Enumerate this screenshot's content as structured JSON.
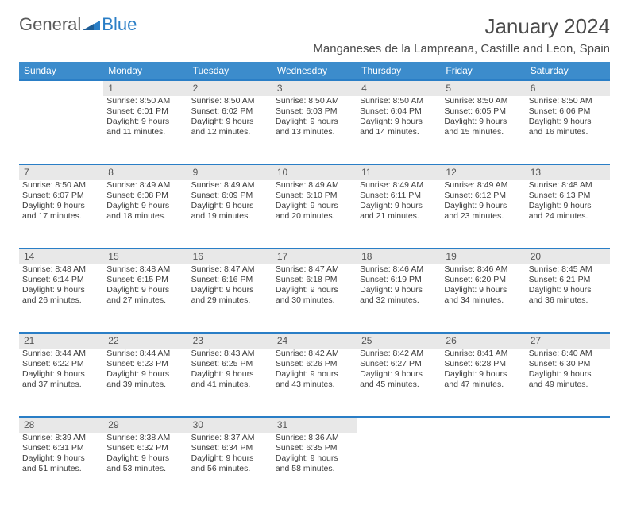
{
  "brand": {
    "part1": "General",
    "part2": "Blue"
  },
  "title": "January 2024",
  "location": "Manganeses de la Lampreana, Castille and Leon, Spain",
  "colors": {
    "header_bg": "#3c8ccc",
    "header_text": "#ffffff",
    "divider": "#2a7ec6",
    "daynum_bg": "#e8e8e8",
    "body_text": "#3d3d3d",
    "page_bg": "#ffffff",
    "logo_gray": "#5a5a5a",
    "logo_blue": "#2a7ec6"
  },
  "weekdays": [
    "Sunday",
    "Monday",
    "Tuesday",
    "Wednesday",
    "Thursday",
    "Friday",
    "Saturday"
  ],
  "weeks": [
    {
      "nums": [
        "",
        "1",
        "2",
        "3",
        "4",
        "5",
        "6"
      ],
      "cells": [
        null,
        {
          "sunrise": "8:50 AM",
          "sunset": "6:01 PM",
          "day_a": "Daylight: 9 hours",
          "day_b": "and 11 minutes."
        },
        {
          "sunrise": "8:50 AM",
          "sunset": "6:02 PM",
          "day_a": "Daylight: 9 hours",
          "day_b": "and 12 minutes."
        },
        {
          "sunrise": "8:50 AM",
          "sunset": "6:03 PM",
          "day_a": "Daylight: 9 hours",
          "day_b": "and 13 minutes."
        },
        {
          "sunrise": "8:50 AM",
          "sunset": "6:04 PM",
          "day_a": "Daylight: 9 hours",
          "day_b": "and 14 minutes."
        },
        {
          "sunrise": "8:50 AM",
          "sunset": "6:05 PM",
          "day_a": "Daylight: 9 hours",
          "day_b": "and 15 minutes."
        },
        {
          "sunrise": "8:50 AM",
          "sunset": "6:06 PM",
          "day_a": "Daylight: 9 hours",
          "day_b": "and 16 minutes."
        }
      ]
    },
    {
      "nums": [
        "7",
        "8",
        "9",
        "10",
        "11",
        "12",
        "13"
      ],
      "cells": [
        {
          "sunrise": "8:50 AM",
          "sunset": "6:07 PM",
          "day_a": "Daylight: 9 hours",
          "day_b": "and 17 minutes."
        },
        {
          "sunrise": "8:49 AM",
          "sunset": "6:08 PM",
          "day_a": "Daylight: 9 hours",
          "day_b": "and 18 minutes."
        },
        {
          "sunrise": "8:49 AM",
          "sunset": "6:09 PM",
          "day_a": "Daylight: 9 hours",
          "day_b": "and 19 minutes."
        },
        {
          "sunrise": "8:49 AM",
          "sunset": "6:10 PM",
          "day_a": "Daylight: 9 hours",
          "day_b": "and 20 minutes."
        },
        {
          "sunrise": "8:49 AM",
          "sunset": "6:11 PM",
          "day_a": "Daylight: 9 hours",
          "day_b": "and 21 minutes."
        },
        {
          "sunrise": "8:49 AM",
          "sunset": "6:12 PM",
          "day_a": "Daylight: 9 hours",
          "day_b": "and 23 minutes."
        },
        {
          "sunrise": "8:48 AM",
          "sunset": "6:13 PM",
          "day_a": "Daylight: 9 hours",
          "day_b": "and 24 minutes."
        }
      ]
    },
    {
      "nums": [
        "14",
        "15",
        "16",
        "17",
        "18",
        "19",
        "20"
      ],
      "cells": [
        {
          "sunrise": "8:48 AM",
          "sunset": "6:14 PM",
          "day_a": "Daylight: 9 hours",
          "day_b": "and 26 minutes."
        },
        {
          "sunrise": "8:48 AM",
          "sunset": "6:15 PM",
          "day_a": "Daylight: 9 hours",
          "day_b": "and 27 minutes."
        },
        {
          "sunrise": "8:47 AM",
          "sunset": "6:16 PM",
          "day_a": "Daylight: 9 hours",
          "day_b": "and 29 minutes."
        },
        {
          "sunrise": "8:47 AM",
          "sunset": "6:18 PM",
          "day_a": "Daylight: 9 hours",
          "day_b": "and 30 minutes."
        },
        {
          "sunrise": "8:46 AM",
          "sunset": "6:19 PM",
          "day_a": "Daylight: 9 hours",
          "day_b": "and 32 minutes."
        },
        {
          "sunrise": "8:46 AM",
          "sunset": "6:20 PM",
          "day_a": "Daylight: 9 hours",
          "day_b": "and 34 minutes."
        },
        {
          "sunrise": "8:45 AM",
          "sunset": "6:21 PM",
          "day_a": "Daylight: 9 hours",
          "day_b": "and 36 minutes."
        }
      ]
    },
    {
      "nums": [
        "21",
        "22",
        "23",
        "24",
        "25",
        "26",
        "27"
      ],
      "cells": [
        {
          "sunrise": "8:44 AM",
          "sunset": "6:22 PM",
          "day_a": "Daylight: 9 hours",
          "day_b": "and 37 minutes."
        },
        {
          "sunrise": "8:44 AM",
          "sunset": "6:23 PM",
          "day_a": "Daylight: 9 hours",
          "day_b": "and 39 minutes."
        },
        {
          "sunrise": "8:43 AM",
          "sunset": "6:25 PM",
          "day_a": "Daylight: 9 hours",
          "day_b": "and 41 minutes."
        },
        {
          "sunrise": "8:42 AM",
          "sunset": "6:26 PM",
          "day_a": "Daylight: 9 hours",
          "day_b": "and 43 minutes."
        },
        {
          "sunrise": "8:42 AM",
          "sunset": "6:27 PM",
          "day_a": "Daylight: 9 hours",
          "day_b": "and 45 minutes."
        },
        {
          "sunrise": "8:41 AM",
          "sunset": "6:28 PM",
          "day_a": "Daylight: 9 hours",
          "day_b": "and 47 minutes."
        },
        {
          "sunrise": "8:40 AM",
          "sunset": "6:30 PM",
          "day_a": "Daylight: 9 hours",
          "day_b": "and 49 minutes."
        }
      ]
    },
    {
      "nums": [
        "28",
        "29",
        "30",
        "31",
        "",
        "",
        ""
      ],
      "cells": [
        {
          "sunrise": "8:39 AM",
          "sunset": "6:31 PM",
          "day_a": "Daylight: 9 hours",
          "day_b": "and 51 minutes."
        },
        {
          "sunrise": "8:38 AM",
          "sunset": "6:32 PM",
          "day_a": "Daylight: 9 hours",
          "day_b": "and 53 minutes."
        },
        {
          "sunrise": "8:37 AM",
          "sunset": "6:34 PM",
          "day_a": "Daylight: 9 hours",
          "day_b": "and 56 minutes."
        },
        {
          "sunrise": "8:36 AM",
          "sunset": "6:35 PM",
          "day_a": "Daylight: 9 hours",
          "day_b": "and 58 minutes."
        },
        null,
        null,
        null
      ]
    }
  ],
  "labels": {
    "sunrise_prefix": "Sunrise: ",
    "sunset_prefix": "Sunset: "
  }
}
